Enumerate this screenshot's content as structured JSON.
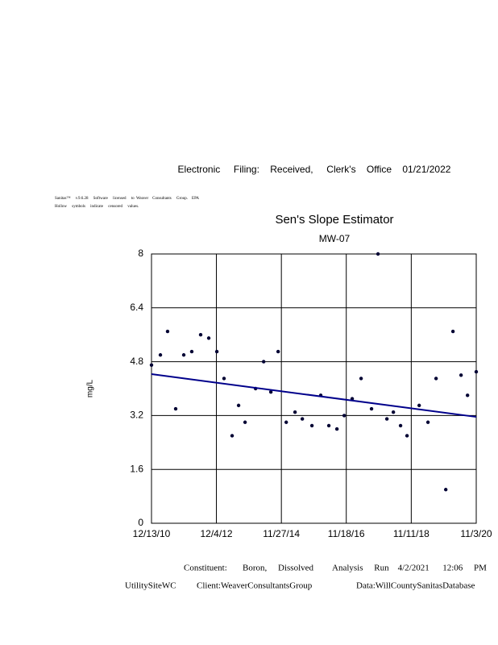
{
  "header": {
    "filing": "Electronic     Filing:    Received,     Clerk's    Office    01/21/2022",
    "note_line1": "Sanitas™     v.9.6.28     Software     licensed     to  Weaver    Consultants     Group.    EPA",
    "note_line2": "Hollow     symbols     indicate     censored     values."
  },
  "chart_data": {
    "type": "scatter",
    "title": "Sen's Slope Estimator",
    "subtitle": "MW-07",
    "y_label": "mg/L",
    "xlim": [
      "2010-12-13",
      "2020-11-03"
    ],
    "xticks": [
      {
        "value": "2010-12-13",
        "label": "12/13/10"
      },
      {
        "value": "2012-12-04",
        "label": "12/4/12"
      },
      {
        "value": "2014-11-27",
        "label": "11/27/14"
      },
      {
        "value": "2016-11-18",
        "label": "11/18/16"
      },
      {
        "value": "2018-11-11",
        "label": "11/11/18"
      },
      {
        "value": "2020-11-03",
        "label": "11/3/20"
      }
    ],
    "ylim": [
      0,
      8
    ],
    "yticks": [
      0,
      1.6,
      3.2,
      4.8,
      6.4,
      8
    ],
    "grid": true,
    "series": [
      {
        "mode": "markers",
        "color": "#000033",
        "x": [
          "2010-12-13",
          "2011-03-22",
          "2011-06-10",
          "2011-09-08",
          "2011-12-07",
          "2012-03-05",
          "2012-06-12",
          "2012-09-10",
          "2012-12-09",
          "2013-02-27",
          "2013-05-28",
          "2013-08-08",
          "2013-10-19",
          "2014-02-13",
          "2014-05-14",
          "2014-08-02",
          "2014-10-22",
          "2015-01-20",
          "2015-04-28",
          "2015-07-18",
          "2015-11-02",
          "2016-02-08",
          "2016-05-08",
          "2016-08-06",
          "2016-10-26",
          "2017-01-23",
          "2017-05-02",
          "2017-08-26",
          "2017-11-06",
          "2018-02-13",
          "2018-04-26",
          "2018-07-15",
          "2018-09-25",
          "2019-02-07",
          "2019-05-16",
          "2019-08-14",
          "2019-11-30",
          "2020-02-18",
          "2020-05-18",
          "2020-07-29",
          "2020-11-03"
        ],
        "values": [
          4.7,
          5.0,
          5.7,
          3.4,
          5.0,
          5.1,
          5.6,
          5.5,
          5.1,
          4.3,
          2.6,
          3.5,
          3.0,
          4.0,
          4.8,
          3.9,
          5.1,
          3.0,
          3.3,
          3.1,
          2.9,
          3.8,
          2.9,
          2.8,
          3.2,
          3.7,
          4.3,
          3.4,
          8.0,
          3.1,
          3.3,
          2.9,
          2.6,
          3.5,
          3.0,
          4.3,
          1.0,
          5.7,
          4.4,
          3.8,
          4.5
        ]
      },
      {
        "mode": "line",
        "color": "#00008b",
        "x": [
          "2010-12-13",
          "2020-11-03"
        ],
        "values": [
          4.43,
          3.16
        ]
      }
    ]
  },
  "footer": {
    "constituent": "Constituent:       Boron,     Dissolved",
    "analysis": "Analysis     Run    4/2/2021      12:06     PM",
    "site": "UtilitySiteWC",
    "client": "Client:WeaverConsultantsGroup",
    "source": "Data:WillCountySanitasDatabase"
  }
}
